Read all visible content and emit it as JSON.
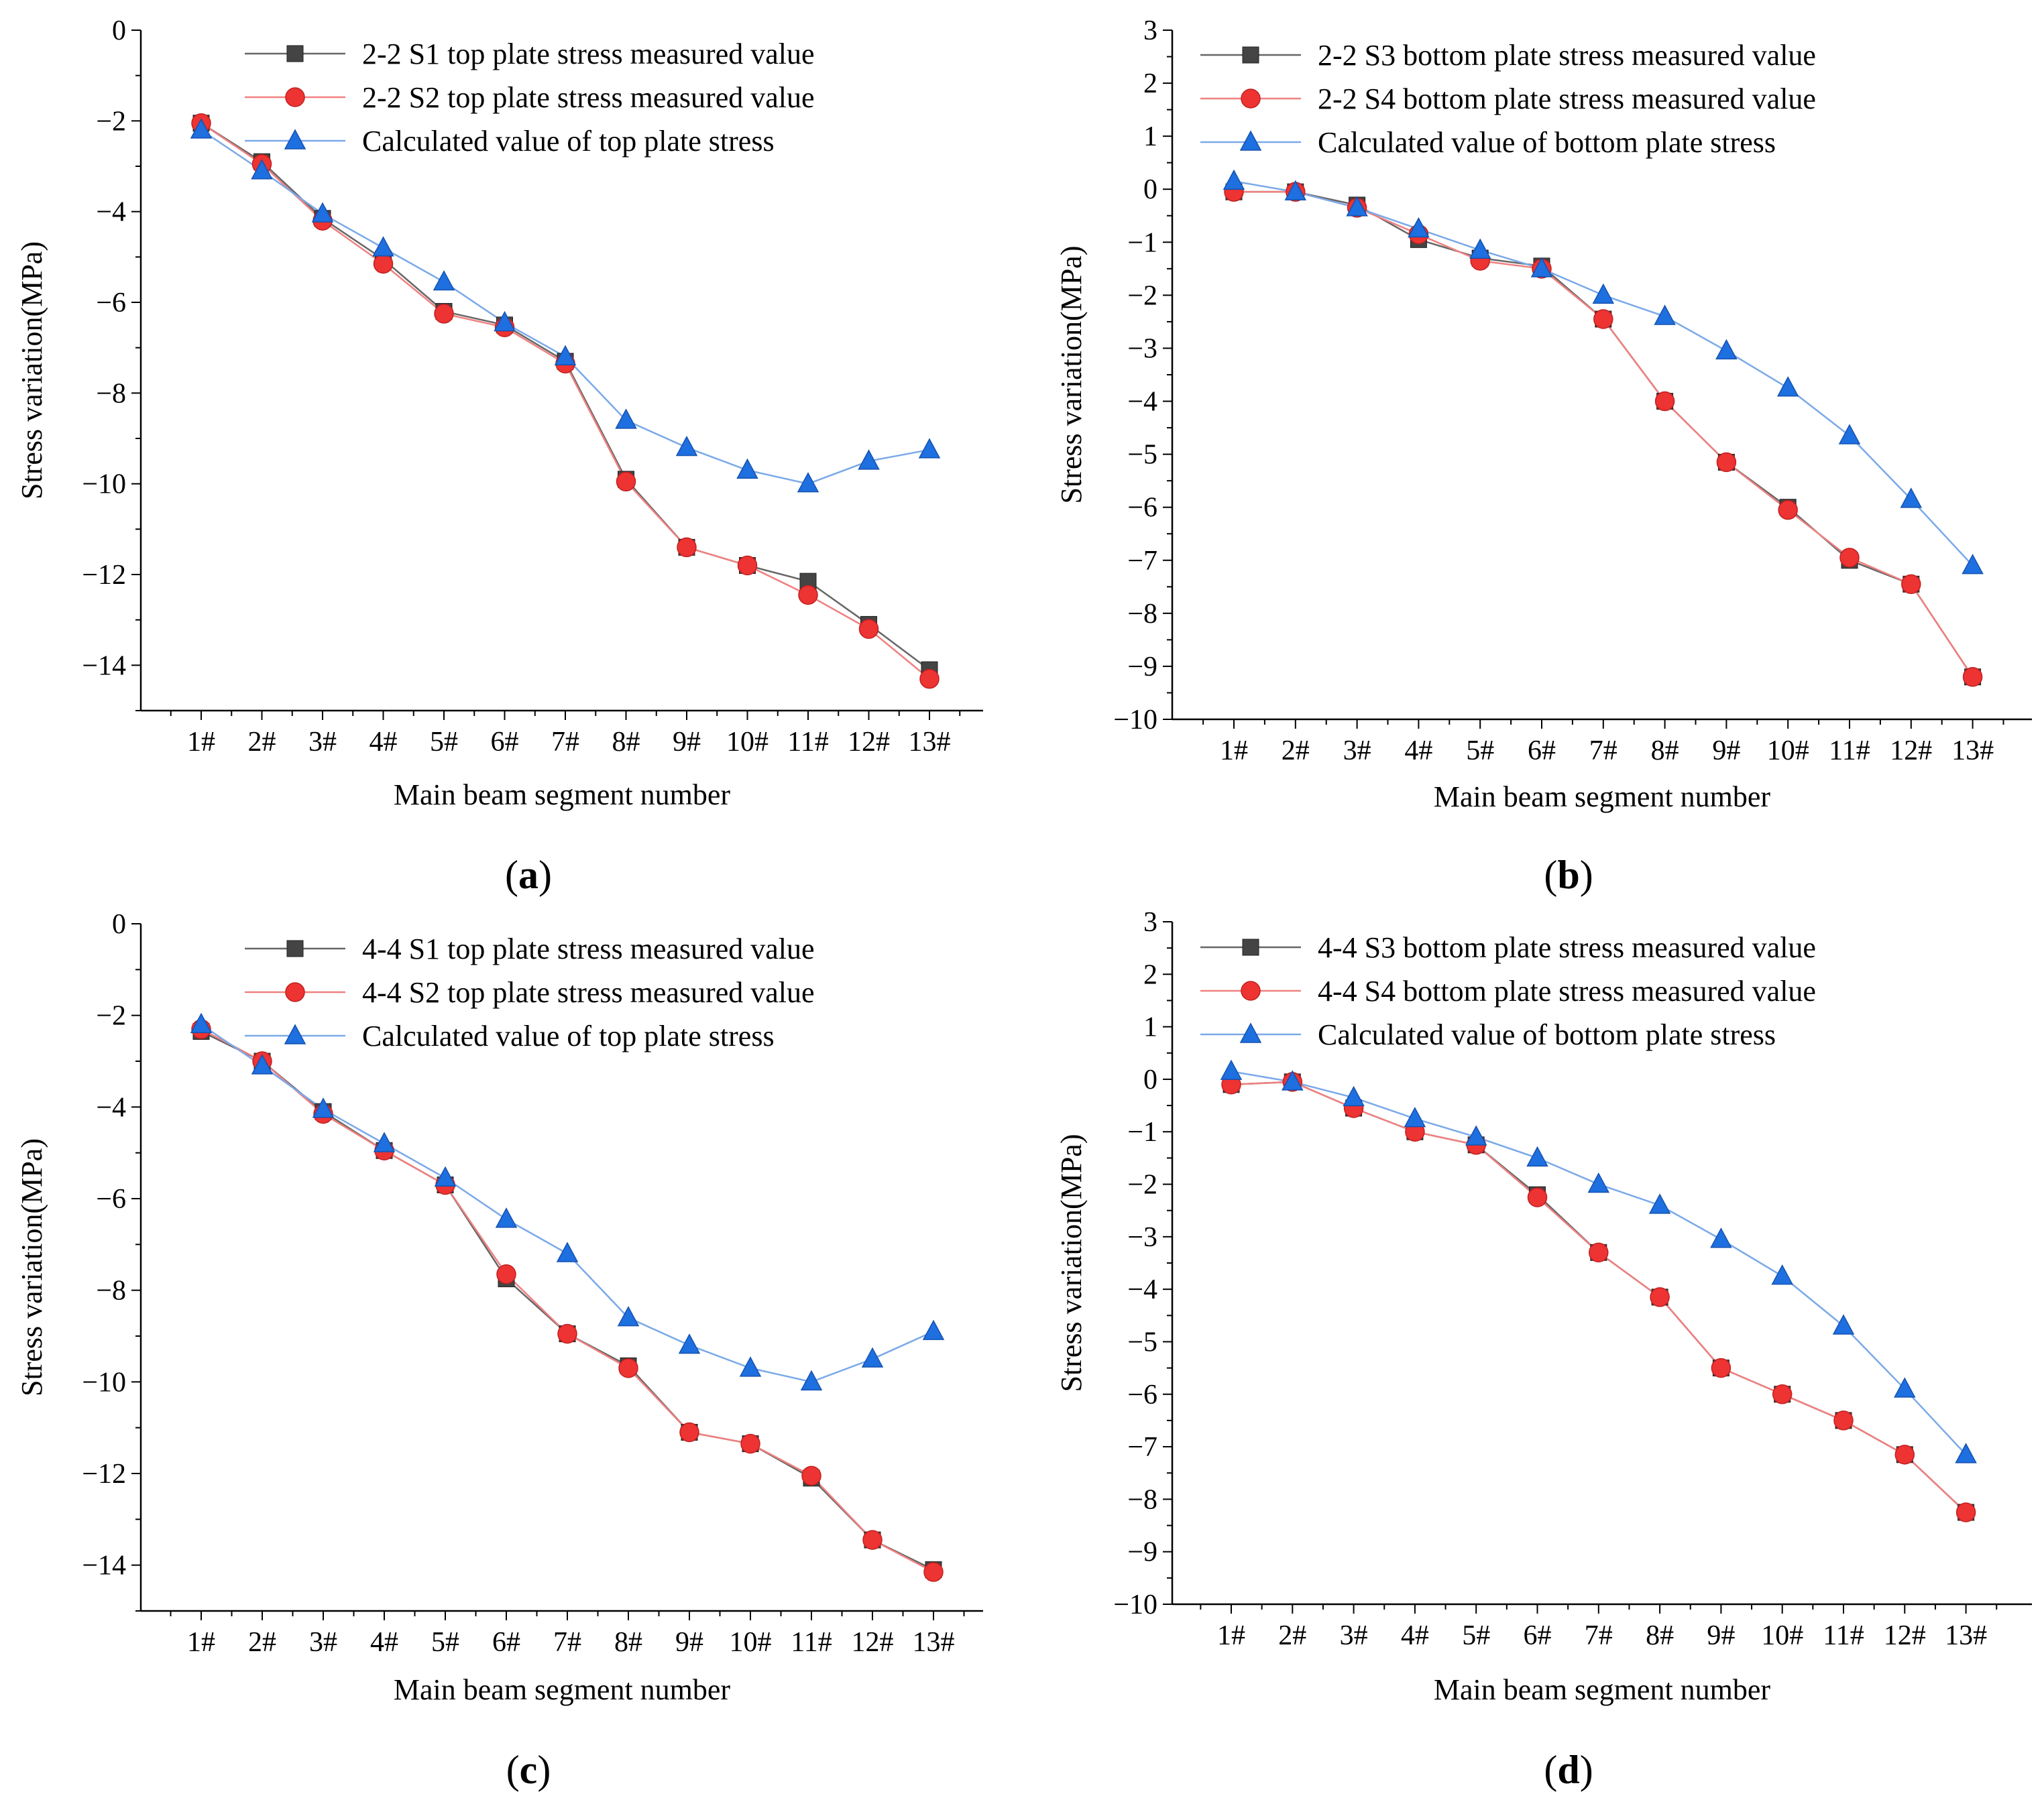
{
  "chart_data": [
    {
      "type": "line",
      "panel_label": "(a)",
      "panel_letter": "a",
      "xlabel": "Main beam segment number",
      "ylabel": "Stress variation(MPa)",
      "categories": [
        "1#",
        "2#",
        "3#",
        "4#",
        "5#",
        "6#",
        "7#",
        "8#",
        "9#",
        "10#",
        "11#",
        "12#",
        "13#"
      ],
      "ylim": [
        -15,
        0
      ],
      "yticks": [
        0,
        -2,
        -4,
        -6,
        -8,
        -10,
        -12,
        -14
      ],
      "ytick_labels": [
        "0",
        "−2",
        "−4",
        "−6",
        "−8",
        "−10",
        "−12",
        "−14"
      ],
      "legend_position": "top-right",
      "series": [
        {
          "name": "2-2 S1 top plate stress measured value",
          "marker": "square",
          "color": "#444444",
          "line_color": "#666666",
          "values": [
            -2.05,
            -2.9,
            -4.15,
            -5.05,
            -6.2,
            -6.5,
            -7.3,
            -9.9,
            -11.4,
            -11.8,
            -12.15,
            -13.1,
            -14.1
          ]
        },
        {
          "name": "2-2 S2 top plate stress measured value",
          "marker": "circle",
          "color": "#ee3333",
          "line_color": "#f08080",
          "values": [
            -2.05,
            -2.95,
            -4.2,
            -5.15,
            -6.25,
            -6.55,
            -7.35,
            -9.95,
            -11.4,
            -11.8,
            -12.45,
            -13.2,
            -14.3
          ]
        },
        {
          "name": "Calculated value of top plate stress",
          "marker": "triangle",
          "color": "#1e6fe0",
          "line_color": "#7aa9e8",
          "values": [
            -2.2,
            -3.1,
            -4.05,
            -4.8,
            -5.55,
            -6.45,
            -7.2,
            -8.6,
            -9.2,
            -9.7,
            -10.0,
            -9.5,
            -9.25
          ]
        }
      ]
    },
    {
      "type": "line",
      "panel_label": "(b)",
      "panel_letter": "b",
      "xlabel": "Main beam segment number",
      "ylabel": "Stress variation(MPa)",
      "categories": [
        "1#",
        "2#",
        "3#",
        "4#",
        "5#",
        "6#",
        "7#",
        "8#",
        "9#",
        "10#",
        "11#",
        "12#",
        "13#"
      ],
      "ylim": [
        -10,
        3
      ],
      "yticks": [
        3,
        2,
        1,
        0,
        -1,
        -2,
        -3,
        -4,
        -5,
        -6,
        -7,
        -8,
        -9,
        -10
      ],
      "ytick_labels": [
        "3",
        "2",
        "1",
        "0",
        "−1",
        "−2",
        "−3",
        "−4",
        "−5",
        "−6",
        "−7",
        "−8",
        "−9",
        "−10"
      ],
      "legend_position": "top-right",
      "series": [
        {
          "name": "2-2 S3 bottom plate stress measured value",
          "marker": "square",
          "color": "#444444",
          "line_color": "#666666",
          "values": [
            -0.05,
            -0.05,
            -0.3,
            -0.95,
            -1.3,
            -1.45,
            -2.45,
            -4.0,
            -5.15,
            -6.0,
            -7.0,
            -7.45,
            -9.2
          ]
        },
        {
          "name": "2-2 S4 bottom plate stress measured value",
          "marker": "circle",
          "color": "#ee3333",
          "line_color": "#f08080",
          "values": [
            -0.05,
            -0.05,
            -0.35,
            -0.85,
            -1.35,
            -1.5,
            -2.45,
            -4.0,
            -5.15,
            -6.05,
            -6.95,
            -7.45,
            -9.2
          ]
        },
        {
          "name": "Calculated value of bottom plate stress",
          "marker": "triangle",
          "color": "#1e6fe0",
          "line_color": "#7aa9e8",
          "values": [
            0.15,
            -0.05,
            -0.35,
            -0.75,
            -1.15,
            -1.5,
            -2.0,
            -2.4,
            -3.05,
            -3.75,
            -4.65,
            -5.85,
            -7.1
          ]
        }
      ]
    },
    {
      "type": "line",
      "panel_label": "(c)",
      "panel_letter": "c",
      "xlabel": "Main beam segment number",
      "ylabel": "Stress variation(MPa)",
      "categories": [
        "1#",
        "2#",
        "3#",
        "4#",
        "5#",
        "6#",
        "7#",
        "8#",
        "9#",
        "10#",
        "11#",
        "12#",
        "13#"
      ],
      "ylim": [
        -15,
        0
      ],
      "yticks": [
        0,
        -2,
        -4,
        -6,
        -8,
        -10,
        -12,
        -14
      ],
      "ytick_labels": [
        "0",
        "−2",
        "−4",
        "−6",
        "−8",
        "−10",
        "−12",
        "−14"
      ],
      "legend_position": "top-right",
      "series": [
        {
          "name": "4-4 S1 top plate stress measured value",
          "marker": "square",
          "color": "#444444",
          "line_color": "#666666",
          "values": [
            -2.35,
            -3.0,
            -4.1,
            -4.95,
            -5.7,
            -7.75,
            -8.95,
            -9.65,
            -11.1,
            -11.35,
            -12.1,
            -13.45,
            -14.1
          ]
        },
        {
          "name": "4-4 S2 top plate stress measured value",
          "marker": "circle",
          "color": "#ee3333",
          "line_color": "#f08080",
          "values": [
            -2.3,
            -3.0,
            -4.15,
            -4.95,
            -5.7,
            -7.65,
            -8.95,
            -9.7,
            -11.1,
            -11.35,
            -12.05,
            -13.45,
            -14.15
          ]
        },
        {
          "name": "Calculated value of top plate stress",
          "marker": "triangle",
          "color": "#1e6fe0",
          "line_color": "#7aa9e8",
          "values": [
            -2.2,
            -3.1,
            -4.05,
            -4.8,
            -5.55,
            -6.45,
            -7.2,
            -8.6,
            -9.2,
            -9.7,
            -10.0,
            -9.5,
            -8.9
          ]
        }
      ]
    },
    {
      "type": "line",
      "panel_label": "(d)",
      "panel_letter": "d",
      "xlabel": "Main beam segment number",
      "ylabel": "Stress variation(MPa)",
      "categories": [
        "1#",
        "2#",
        "3#",
        "4#",
        "5#",
        "6#",
        "7#",
        "8#",
        "9#",
        "10#",
        "11#",
        "12#",
        "13#"
      ],
      "ylim": [
        -10,
        3
      ],
      "yticks": [
        3,
        2,
        1,
        0,
        -1,
        -2,
        -3,
        -4,
        -5,
        -6,
        -7,
        -8,
        -9,
        -10
      ],
      "ytick_labels": [
        "3",
        "2",
        "1",
        "0",
        "−1",
        "−2",
        "−3",
        "−4",
        "−5",
        "−6",
        "−7",
        "−8",
        "−9",
        "−10"
      ],
      "legend_position": "top-right",
      "series": [
        {
          "name": "4-4  S3 bottom plate stress measured value",
          "marker": "square",
          "color": "#444444",
          "line_color": "#666666",
          "values": [
            -0.1,
            -0.05,
            -0.55,
            -1.0,
            -1.25,
            -2.2,
            -3.3,
            -4.15,
            -5.5,
            -6.0,
            -6.5,
            -7.15,
            -8.25
          ]
        },
        {
          "name": "4-4  S4 bottom plate stress measured value",
          "marker": "circle",
          "color": "#ee3333",
          "line_color": "#f08080",
          "values": [
            -0.1,
            -0.05,
            -0.55,
            -1.0,
            -1.25,
            -2.25,
            -3.3,
            -4.15,
            -5.5,
            -6.0,
            -6.5,
            -7.15,
            -8.25
          ]
        },
        {
          "name": "Calculated value of bottom plate stress",
          "marker": "triangle",
          "color": "#1e6fe0",
          "line_color": "#7aa9e8",
          "values": [
            0.15,
            -0.05,
            -0.35,
            -0.75,
            -1.1,
            -1.5,
            -2.0,
            -2.4,
            -3.05,
            -3.75,
            -4.7,
            -5.9,
            -7.15
          ]
        }
      ]
    }
  ]
}
